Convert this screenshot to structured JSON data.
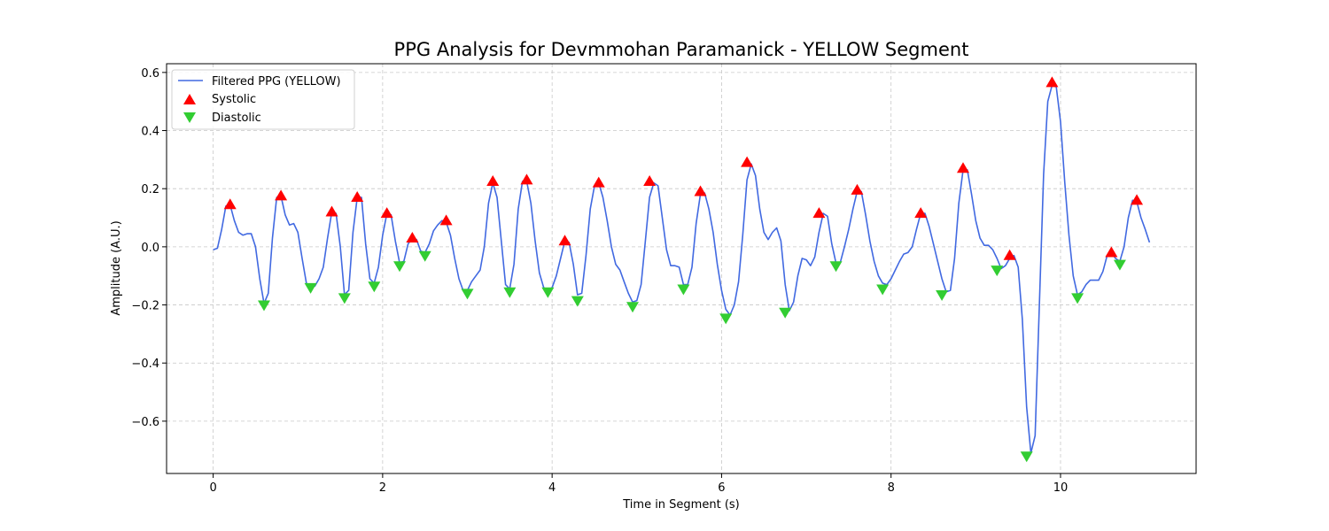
{
  "chart_data": {
    "type": "line",
    "title": "PPG Analysis for Devmmohan Paramanick - YELLOW Segment",
    "xlabel": "Time in Segment (s)",
    "ylabel": "Amplitude (A.U.)",
    "xlim": [
      -0.55,
      11.6
    ],
    "ylim": [
      -0.78,
      0.63
    ],
    "xticks": [
      0,
      2,
      4,
      6,
      8,
      10
    ],
    "yticks": [
      -0.6,
      -0.4,
      -0.2,
      0.0,
      0.2,
      0.4,
      0.6
    ],
    "xtick_labels": [
      "0",
      "2",
      "4",
      "6",
      "8",
      "10"
    ],
    "ytick_labels": [
      "−0.6",
      "−0.4",
      "−0.2",
      "0.0",
      "0.2",
      "0.4",
      "0.6"
    ],
    "grid": true,
    "legend_position": "top-left",
    "colors": {
      "line": "#4169E1",
      "systolic": "#FF0000",
      "diastolic": "#32CD32"
    },
    "series": [
      {
        "name": "Filtered PPG (YELLOW)",
        "kind": "line",
        "x": [
          0.0,
          0.05,
          0.1,
          0.15,
          0.2,
          0.25,
          0.3,
          0.35,
          0.4,
          0.45,
          0.5,
          0.55,
          0.6,
          0.65,
          0.7,
          0.75,
          0.8,
          0.85,
          0.9,
          0.95,
          1.0,
          1.05,
          1.1,
          1.15,
          1.2,
          1.25,
          1.3,
          1.35,
          1.4,
          1.45,
          1.5,
          1.55,
          1.6,
          1.65,
          1.7,
          1.75,
          1.8,
          1.85,
          1.9,
          1.95,
          2.0,
          2.05,
          2.1,
          2.15,
          2.2,
          2.25,
          2.3,
          2.35,
          2.4,
          2.45,
          2.5,
          2.55,
          2.6,
          2.65,
          2.7,
          2.75,
          2.8,
          2.85,
          2.9,
          2.95,
          3.0,
          3.05,
          3.1,
          3.15,
          3.2,
          3.25,
          3.3,
          3.35,
          3.4,
          3.45,
          3.5,
          3.55,
          3.6,
          3.65,
          3.7,
          3.75,
          3.8,
          3.85,
          3.9,
          3.95,
          4.0,
          4.05,
          4.1,
          4.15,
          4.2,
          4.25,
          4.3,
          4.35,
          4.4,
          4.45,
          4.5,
          4.55,
          4.6,
          4.65,
          4.7,
          4.75,
          4.8,
          4.85,
          4.9,
          4.95,
          5.0,
          5.05,
          5.1,
          5.15,
          5.2,
          5.25,
          5.3,
          5.35,
          5.4,
          5.45,
          5.5,
          5.55,
          5.6,
          5.65,
          5.7,
          5.75,
          5.8,
          5.85,
          5.9,
          5.95,
          6.0,
          6.05,
          6.1,
          6.15,
          6.2,
          6.25,
          6.3,
          6.35,
          6.4,
          6.45,
          6.5,
          6.55,
          6.6,
          6.65,
          6.7,
          6.75,
          6.8,
          6.85,
          6.9,
          6.95,
          7.0,
          7.05,
          7.1,
          7.15,
          7.2,
          7.25,
          7.3,
          7.35,
          7.4,
          7.45,
          7.5,
          7.55,
          7.6,
          7.65,
          7.7,
          7.75,
          7.8,
          7.85,
          7.9,
          7.95,
          8.0,
          8.05,
          8.1,
          8.15,
          8.2,
          8.25,
          8.3,
          8.35,
          8.4,
          8.45,
          8.5,
          8.55,
          8.6,
          8.65,
          8.7,
          8.75,
          8.8,
          8.85,
          8.9,
          8.95,
          9.0,
          9.05,
          9.1,
          9.15,
          9.2,
          9.25,
          9.3,
          9.35,
          9.4,
          9.45,
          9.5,
          9.55,
          9.6,
          9.65,
          9.7,
          9.75,
          9.8,
          9.85,
          9.9,
          9.95,
          10.0,
          10.05,
          10.1,
          10.15,
          10.2,
          10.25,
          10.3,
          10.35,
          10.4,
          10.45,
          10.5,
          10.55,
          10.6,
          10.65,
          10.7,
          10.75,
          10.8,
          10.85,
          10.9,
          10.95,
          11.0,
          11.05
        ],
        "y": [
          -0.01,
          -0.005,
          0.06,
          0.14,
          0.145,
          0.09,
          0.05,
          0.04,
          0.045,
          0.045,
          0.0,
          -0.11,
          -0.195,
          -0.16,
          0.03,
          0.17,
          0.175,
          0.11,
          0.075,
          0.08,
          0.05,
          -0.04,
          -0.125,
          -0.14,
          -0.135,
          -0.11,
          -0.07,
          0.03,
          0.12,
          0.115,
          0.0,
          -0.165,
          -0.15,
          0.05,
          0.17,
          0.17,
          0.01,
          -0.11,
          -0.125,
          -0.07,
          0.04,
          0.115,
          0.11,
          0.02,
          -0.055,
          -0.05,
          0.01,
          0.03,
          0.025,
          -0.015,
          -0.02,
          0.01,
          0.055,
          0.075,
          0.09,
          0.085,
          0.04,
          -0.04,
          -0.11,
          -0.15,
          -0.15,
          -0.12,
          -0.1,
          -0.08,
          0.0,
          0.15,
          0.22,
          0.17,
          0.02,
          -0.13,
          -0.145,
          -0.06,
          0.13,
          0.225,
          0.225,
          0.15,
          0.02,
          -0.09,
          -0.14,
          -0.15,
          -0.14,
          -0.1,
          -0.04,
          0.02,
          0.015,
          -0.06,
          -0.165,
          -0.16,
          -0.03,
          0.13,
          0.21,
          0.22,
          0.17,
          0.09,
          0.0,
          -0.06,
          -0.08,
          -0.12,
          -0.16,
          -0.19,
          -0.185,
          -0.13,
          0.02,
          0.17,
          0.22,
          0.21,
          0.1,
          -0.01,
          -0.065,
          -0.065,
          -0.07,
          -0.13,
          -0.13,
          -0.07,
          0.08,
          0.18,
          0.185,
          0.13,
          0.05,
          -0.06,
          -0.15,
          -0.215,
          -0.235,
          -0.2,
          -0.12,
          0.04,
          0.23,
          0.285,
          0.245,
          0.13,
          0.05,
          0.025,
          0.05,
          0.065,
          0.02,
          -0.13,
          -0.22,
          -0.19,
          -0.1,
          -0.04,
          -0.045,
          -0.065,
          -0.035,
          0.05,
          0.115,
          0.105,
          0.01,
          -0.055,
          -0.055,
          0.0,
          0.06,
          0.13,
          0.19,
          0.19,
          0.11,
          0.02,
          -0.05,
          -0.1,
          -0.125,
          -0.13,
          -0.11,
          -0.08,
          -0.05,
          -0.025,
          -0.02,
          0.0,
          0.06,
          0.115,
          0.115,
          0.07,
          0.01,
          -0.05,
          -0.11,
          -0.155,
          -0.15,
          -0.04,
          0.15,
          0.265,
          0.265,
          0.18,
          0.09,
          0.03,
          0.005,
          0.005,
          -0.01,
          -0.04,
          -0.075,
          -0.065,
          -0.04,
          -0.03,
          -0.07,
          -0.25,
          -0.55,
          -0.71,
          -0.65,
          -0.2,
          0.25,
          0.5,
          0.555,
          0.55,
          0.43,
          0.22,
          0.04,
          -0.1,
          -0.165,
          -0.155,
          -0.13,
          -0.115,
          -0.115,
          -0.115,
          -0.085,
          -0.03,
          -0.02,
          -0.04,
          -0.05,
          0.0,
          0.1,
          0.16,
          0.155,
          0.1,
          0.06,
          0.015
        ]
      },
      {
        "name": "Systolic",
        "kind": "scatter",
        "marker": "triangle-up",
        "x": [
          0.2,
          0.8,
          1.4,
          1.7,
          2.05,
          2.35,
          2.75,
          3.3,
          3.7,
          4.15,
          4.55,
          5.15,
          5.75,
          6.3,
          7.15,
          7.6,
          8.35,
          8.85,
          9.4,
          9.9,
          10.6,
          10.9
        ],
        "y": [
          0.145,
          0.175,
          0.12,
          0.17,
          0.115,
          0.03,
          0.09,
          0.225,
          0.23,
          0.02,
          0.22,
          0.225,
          0.19,
          0.29,
          0.115,
          0.195,
          0.115,
          0.27,
          -0.03,
          0.565,
          -0.02,
          0.16
        ]
      },
      {
        "name": "Diastolic",
        "kind": "scatter",
        "marker": "triangle-down",
        "x": [
          0.6,
          1.15,
          1.55,
          1.9,
          2.2,
          2.5,
          3.0,
          3.5,
          3.95,
          4.3,
          4.95,
          5.55,
          6.05,
          6.75,
          7.35,
          7.9,
          8.6,
          9.25,
          9.6,
          10.2,
          10.7
        ],
        "y": [
          -0.2,
          -0.14,
          -0.175,
          -0.135,
          -0.065,
          -0.03,
          -0.16,
          -0.155,
          -0.155,
          -0.185,
          -0.205,
          -0.145,
          -0.245,
          -0.225,
          -0.065,
          -0.145,
          -0.165,
          -0.08,
          -0.72,
          -0.175,
          -0.06
        ]
      }
    ]
  }
}
